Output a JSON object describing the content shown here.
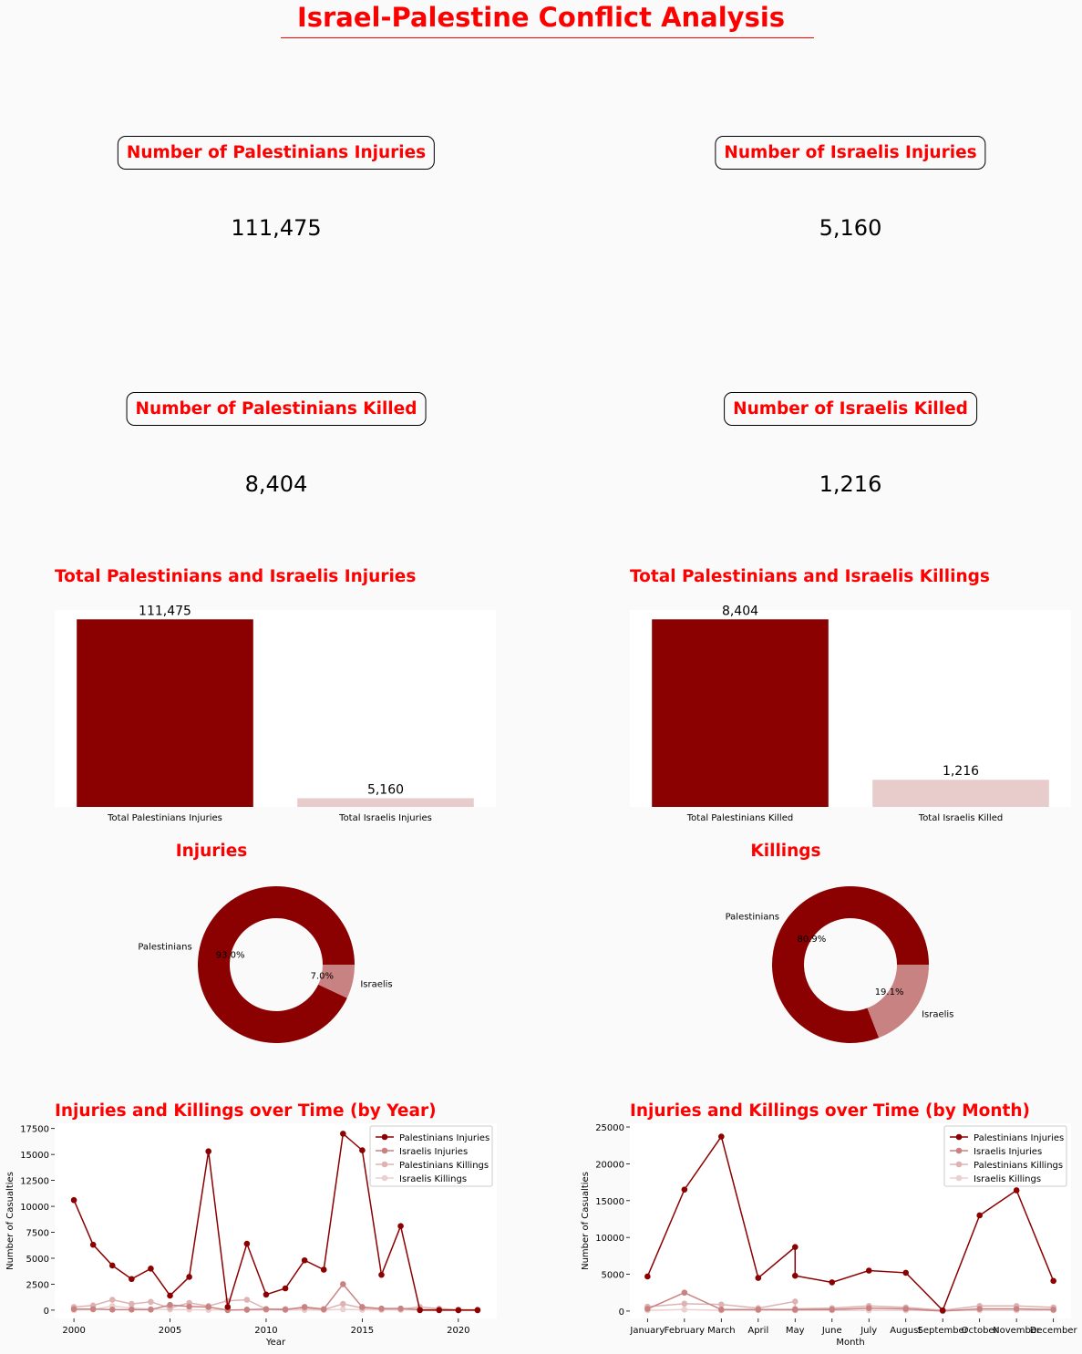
{
  "title": "Israel-Palestine Conflict Analysis",
  "kpis": [
    {
      "label": "Number of Palestinians Injuries",
      "value": "111,475"
    },
    {
      "label": "Number of Israelis Injuries",
      "value": "5,160"
    },
    {
      "label": "Number of Palestinians Killed",
      "value": "8,404"
    },
    {
      "label": "Number of Israelis Killed",
      "value": "1,216"
    }
  ],
  "colors": {
    "accent": "#ff0000",
    "dark_red": "#8b0000",
    "rose": "#c98282",
    "pink": "#deb3b3",
    "light_pink": "#ebd0d0",
    "background": "#fafafa"
  },
  "chart_data": [
    {
      "type": "bar",
      "title": "Total Palestinians and Israelis Injuries",
      "categories": [
        "Total Palestinians Injuries",
        "Total Israelis Injuries"
      ],
      "values": [
        111475,
        5160
      ],
      "value_labels": [
        "111,475",
        "5,160"
      ],
      "colors": [
        "#8b0000",
        "#e8cccc"
      ]
    },
    {
      "type": "bar",
      "title": "Total Palestinians and Israelis Killings",
      "categories": [
        "Total Palestinians Killed",
        "Total Israelis Killed"
      ],
      "values": [
        8404,
        1216
      ],
      "value_labels": [
        "8,404",
        "1,216"
      ],
      "colors": [
        "#8b0000",
        "#e8cccc"
      ]
    },
    {
      "type": "pie",
      "title": "Injuries",
      "labels": [
        "Palestinians",
        "Israelis"
      ],
      "values": [
        93.0,
        7.0
      ],
      "pct_labels": [
        "93.0%",
        "7.0%"
      ],
      "colors": [
        "#8b0000",
        "#c98282"
      ]
    },
    {
      "type": "pie",
      "title": "Killings",
      "labels": [
        "Palestinians",
        "Israelis"
      ],
      "values": [
        80.9,
        19.1
      ],
      "pct_labels": [
        "80.9%",
        "19.1%"
      ],
      "colors": [
        "#8b0000",
        "#c98282"
      ]
    },
    {
      "type": "line",
      "title": "Injuries and Killings over Time (by Year)",
      "xlabel": "Year",
      "ylabel": "Number of Casualties",
      "x": [
        2000,
        2001,
        2002,
        2003,
        2004,
        2005,
        2006,
        2007,
        2008,
        2009,
        2010,
        2011,
        2012,
        2013,
        2014,
        2015,
        2016,
        2017,
        2018,
        2019,
        2020,
        2021
      ],
      "xticks": [
        2000,
        2005,
        2010,
        2015,
        2020
      ],
      "xlim": [
        1999,
        2022
      ],
      "yticks": [
        0,
        2500,
        5000,
        7500,
        10000,
        12500,
        15000,
        17500
      ],
      "ylim": [
        -800,
        18000
      ],
      "legend": "top-right",
      "series": [
        {
          "name": "Palestinians Injuries",
          "color": "#8b0000",
          "values": [
            10600,
            6300,
            4300,
            3000,
            4000,
            1400,
            3200,
            15300,
            300,
            6400,
            1500,
            2100,
            4800,
            3900,
            17000,
            15400,
            3400,
            8100,
            0,
            0,
            0,
            0
          ]
        },
        {
          "name": "Israelis Injuries",
          "color": "#c98282",
          "values": [
            100,
            100,
            50,
            50,
            50,
            500,
            350,
            300,
            0,
            50,
            100,
            50,
            300,
            100,
            2500,
            300,
            150,
            150,
            50,
            50,
            0,
            0
          ]
        },
        {
          "name": "Palestinians Killings",
          "color": "#deb3b3",
          "values": [
            300,
            450,
            1000,
            600,
            800,
            200,
            700,
            400,
            900,
            1000,
            100,
            100,
            200,
            50,
            600,
            200,
            100,
            100,
            300,
            150,
            50,
            50
          ]
        },
        {
          "name": "Israelis Killings",
          "color": "#ebd0d0",
          "values": [
            0,
            50,
            400,
            200,
            100,
            50,
            50,
            20,
            20,
            10,
            10,
            20,
            10,
            10,
            80,
            30,
            20,
            20,
            10,
            10,
            10,
            10
          ]
        }
      ]
    },
    {
      "type": "line",
      "title": "Injuries and Killings over Time (by Month)",
      "xlabel": "Month",
      "ylabel": "Number of Casualties",
      "x": [
        "January",
        "February",
        "March",
        "April",
        "May",
        "May",
        "June",
        "July",
        "August",
        "September",
        "October",
        "November",
        "December"
      ],
      "xticks": [
        "January",
        "February",
        "March",
        "April",
        "May",
        "June",
        "July",
        "August",
        "September",
        "October",
        "November",
        "December"
      ],
      "ylim": [
        -1000,
        25500
      ],
      "yticks": [
        0,
        5000,
        10000,
        15000,
        20000,
        25000
      ],
      "legend": "top-right",
      "series": [
        {
          "name": "Palestinians Injuries",
          "color": "#8b0000",
          "values": [
            4700,
            16500,
            23700,
            4500,
            8700,
            4800,
            3900,
            5500,
            5200,
            100,
            13000,
            16400,
            4100
          ]
        },
        {
          "name": "Israelis Injuries",
          "color": "#c98282",
          "values": [
            300,
            2500,
            200,
            200,
            200,
            200,
            200,
            400,
            300,
            0,
            300,
            300,
            200
          ]
        },
        {
          "name": "Palestinians Killings",
          "color": "#deb3b3",
          "values": [
            600,
            1000,
            900,
            400,
            1300,
            300,
            400,
            700,
            500,
            100,
            700,
            700,
            500
          ]
        },
        {
          "name": "Israelis Killings",
          "color": "#ebd0d0",
          "values": [
            100,
            200,
            100,
            100,
            100,
            100,
            100,
            100,
            100,
            50,
            100,
            100,
            100
          ]
        }
      ]
    }
  ]
}
